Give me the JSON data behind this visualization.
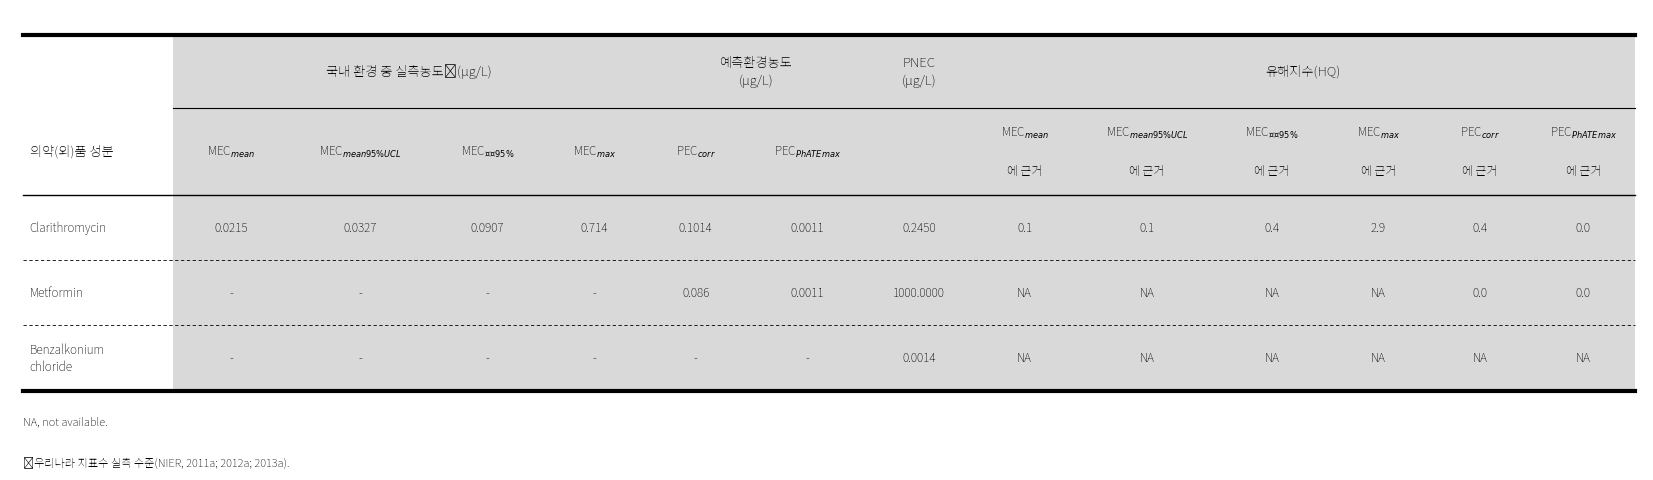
{
  "bg_color": "#ffffff",
  "header_bg": "#d9d9d9",
  "text_color": "#000000",
  "col_header_group1": "국내 환경 중 실측농도ᵃ(μg/L)",
  "col_header_group2": "예측환경농도\n(μg/L)",
  "col_header_group3": "유해지수(HQ)",
  "col_header_pnec": "PNEC\n(μg/L)",
  "row_header_label": "의약(외)품 성분",
  "subheaders_group1": [
    "MEC$_{mean}$",
    "MEC$_{mean95\\%UCL}$",
    "MEC$_{상위95\\%}$",
    "MEC$_{max}$"
  ],
  "subheaders_group2": [
    "PEC$_{corr}$",
    "PEC$_{PhATEmax}$"
  ],
  "subheaders_group3_line1": [
    "MEC$_{mean}$",
    "MEC$_{mean95\\%UCL}$",
    "MEC$_{상위95\\%}$",
    "MEC$_{max}$",
    "PEC$_{corr}$",
    "PEC$_{PhATEmax}$"
  ],
  "subheaders_group3_line2": [
    "에 근거",
    "에 근거",
    "에 근거",
    "에 근거",
    "에 근거",
    "에 근거"
  ],
  "rows": [
    {
      "name": "Clarithromycin",
      "g1": [
        "0.0215",
        "0.0327",
        "0.0907",
        "0.714"
      ],
      "g2": [
        "0.1014",
        "0.0011"
      ],
      "pnec": "0.2450",
      "g3": [
        "0.1",
        "0.1",
        "0.4",
        "2.9",
        "0.4",
        "0.0"
      ]
    },
    {
      "name": "Metformin",
      "g1": [
        "-",
        "-",
        "-",
        "-"
      ],
      "g2": [
        "0.086",
        "0.0011"
      ],
      "pnec": "1000.0000",
      "g3": [
        "NA",
        "NA",
        "NA",
        "NA",
        "0.0",
        "0.0"
      ]
    },
    {
      "name": "Benzalkonium\nchloride",
      "g1": [
        "-",
        "-",
        "-",
        "-"
      ],
      "g2": [
        "-",
        "-"
      ],
      "pnec": "0.0014",
      "g3": [
        "NA",
        "NA",
        "NA",
        "NA",
        "NA",
        "NA"
      ]
    }
  ],
  "footnote1": "NA, not available.",
  "footnote2": "ᵃ우리나라 지표수 실측 수준(NIER, 2011a; 2012a; 2013a)."
}
